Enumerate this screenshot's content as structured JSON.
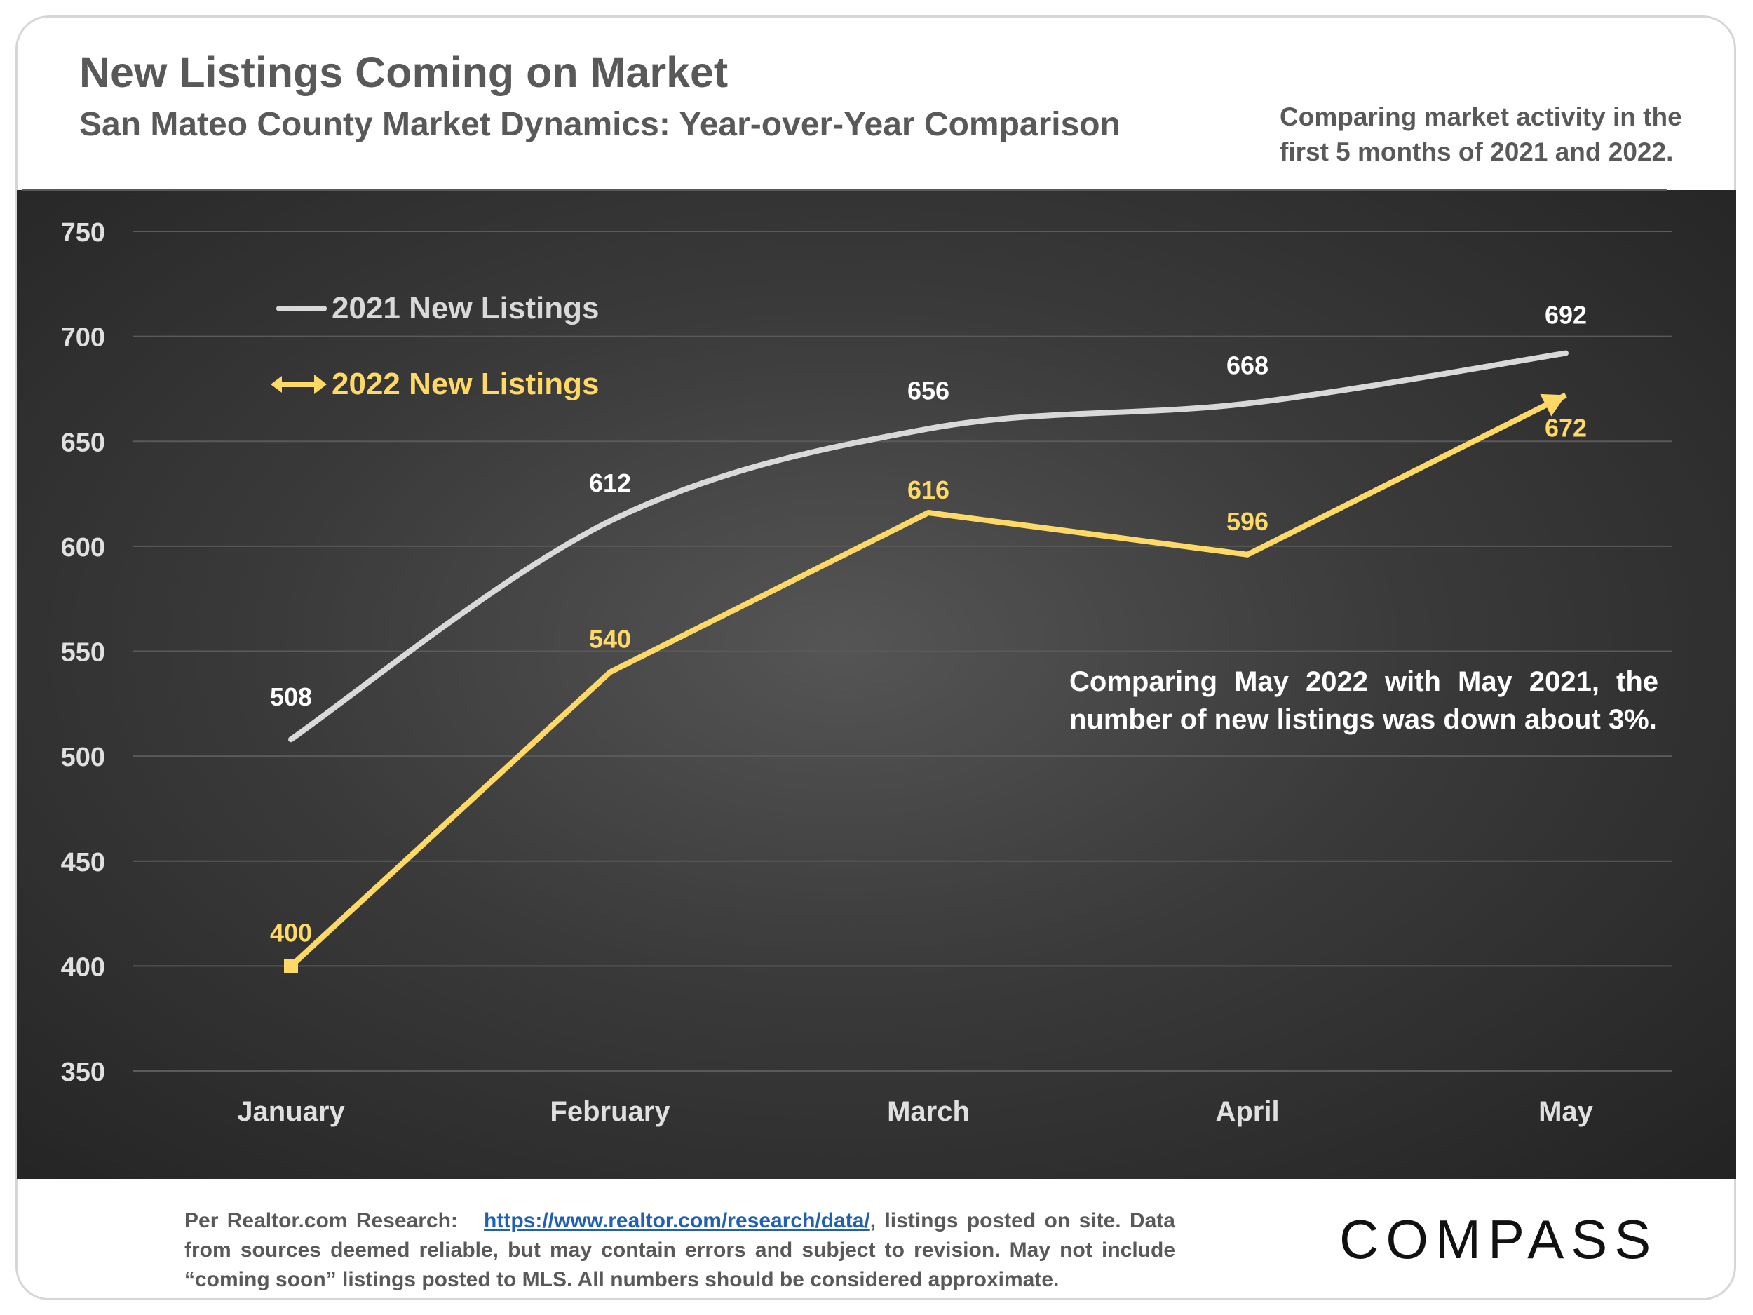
{
  "header": {
    "title": "New Listings Coming on Market",
    "subtitle": "San Mateo County Market Dynamics: Year-over-Year Comparison",
    "note": "Comparing market activity in the first 5 months of 2021 and 2022."
  },
  "annotation": "Comparing May 2022 with May 2021, the number of new listings was down about 3%.",
  "footer": {
    "prefix": "Per Realtor.com Research:",
    "link": "https://www.realtor.com/research/data/",
    "suffix": ", listings posted on site. Data from sources deemed reliable, but may contain errors and subject to revision. May not include “coming soon” listings posted to MLS. All numbers should be considered approximate."
  },
  "brand": "COMPASS",
  "colors": {
    "series_2021": "#d9d9d9",
    "series_2022": "#ffd966",
    "label_2021": "#ffffff",
    "label_2022": "#ffd966",
    "axis_text": "#e0e0e0",
    "grid": "#5a5a5a"
  },
  "chart_data": {
    "type": "line",
    "title": "New Listings Coming on Market",
    "categories": [
      "January",
      "February",
      "March",
      "April",
      "May"
    ],
    "series": [
      {
        "name": "2021 New Listings",
        "values": [
          508,
          612,
          656,
          668,
          692
        ],
        "smooth": true
      },
      {
        "name": "2022 New Listings",
        "values": [
          400,
          540,
          616,
          596,
          672
        ],
        "smooth": false
      }
    ],
    "ylim": [
      350,
      750
    ],
    "yticks": [
      350,
      400,
      450,
      500,
      550,
      600,
      650,
      700,
      750
    ],
    "xlabel": "",
    "ylabel": "",
    "grid": true,
    "legend": "top-left"
  }
}
